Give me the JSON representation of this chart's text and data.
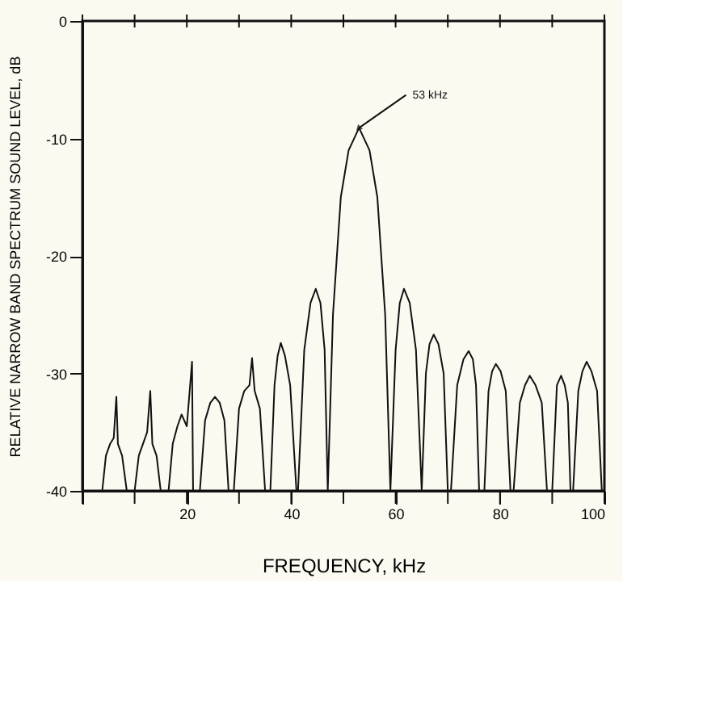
{
  "chart_data": {
    "type": "line",
    "xlabel": "FREQUENCY, kHz",
    "ylabel": "RELATIVE NARROW BAND SPECTRUM SOUND LEVEL, dB",
    "series": [
      {
        "color": "#111111",
        "x": [
          3.8,
          4.5,
          5.3,
          6,
          6.5,
          6.8,
          7.6,
          8.5,
          10,
          10.8,
          11.6,
          12.4,
          13,
          13.4,
          14.2,
          15,
          16.5,
          17.3,
          18.2,
          19,
          20,
          21,
          21.2,
          22.5,
          23.5,
          24.5,
          25.4,
          26.3,
          27.2,
          28,
          29,
          30,
          31,
          32,
          32.5,
          33,
          34,
          35,
          36,
          36.8,
          37.4,
          38,
          38.8,
          39.8,
          41,
          41.3,
          42.5,
          43.7,
          44.7,
          45.6,
          46.4,
          47,
          48,
          49.5,
          51,
          53,
          55,
          56.5,
          58,
          59,
          60,
          60.8,
          61.6,
          62.7,
          63.9,
          65,
          65.8,
          66.5,
          67.3,
          68.2,
          69.2,
          70,
          70.6,
          71.8,
          73,
          74,
          74.8,
          75.4,
          76,
          77,
          77.8,
          78.5,
          79.2,
          80.1,
          81.1,
          82,
          82.6,
          83.8,
          84.8,
          85.7,
          86.8,
          88,
          89,
          90,
          90.9,
          91.7,
          92.4,
          93,
          93.5,
          94,
          95,
          95.8,
          96.6,
          97.5,
          98.6,
          99.5
        ],
        "values": [
          -40,
          -37,
          -36,
          -35.5,
          -32,
          -36,
          -37,
          -40,
          -40,
          -37,
          -36,
          -35,
          -31.5,
          -36,
          -37,
          -40,
          -40,
          -36,
          -34.5,
          -33.5,
          -34.5,
          -29,
          -40,
          -40,
          -34,
          -32.5,
          -32,
          -32.5,
          -34,
          -40,
          -40,
          -33,
          -31.5,
          -31,
          -28.7,
          -31.5,
          -33,
          -40,
          -40,
          -31,
          -28.5,
          -27.4,
          -28.5,
          -31,
          -40,
          -40,
          -28,
          -24,
          -22.8,
          -24,
          -28,
          -40,
          -25,
          -15,
          -11,
          -9.1,
          -11,
          -15,
          -25,
          -40,
          -28,
          -24,
          -22.8,
          -24,
          -28,
          -40,
          -30,
          -27.5,
          -26.7,
          -27.5,
          -30,
          -40,
          -40,
          -31,
          -28.8,
          -28.1,
          -28.8,
          -31,
          -40,
          -40,
          -31.5,
          -29.8,
          -29.2,
          -29.8,
          -31.5,
          -40,
          -40,
          -32.5,
          -31,
          -30.2,
          -31,
          -32.5,
          -40,
          -40,
          -31,
          -30.2,
          -31,
          -32.5,
          -40,
          -40,
          -31.5,
          -29.8,
          -29,
          -29.8,
          -31.5,
          -40
        ]
      }
    ],
    "xlim": [
      0,
      100
    ],
    "ylim": [
      -40,
      0
    ],
    "xticks": [
      {
        "value": 0,
        "label": null
      },
      {
        "value": 10,
        "label": null
      },
      20,
      {
        "value": 30,
        "label": null
      },
      40,
      {
        "value": 50,
        "label": null
      },
      60,
      {
        "value": 70,
        "label": null
      },
      80,
      {
        "value": 90,
        "label": null
      },
      100
    ],
    "yticks": [
      -40,
      -30,
      -20,
      -10,
      0
    ],
    "annotations": [
      {
        "text": "53 kHz",
        "x": 53,
        "y": -9.1
      }
    ],
    "grid": false,
    "legend": false,
    "marker": "none",
    "line_style": "solid"
  }
}
